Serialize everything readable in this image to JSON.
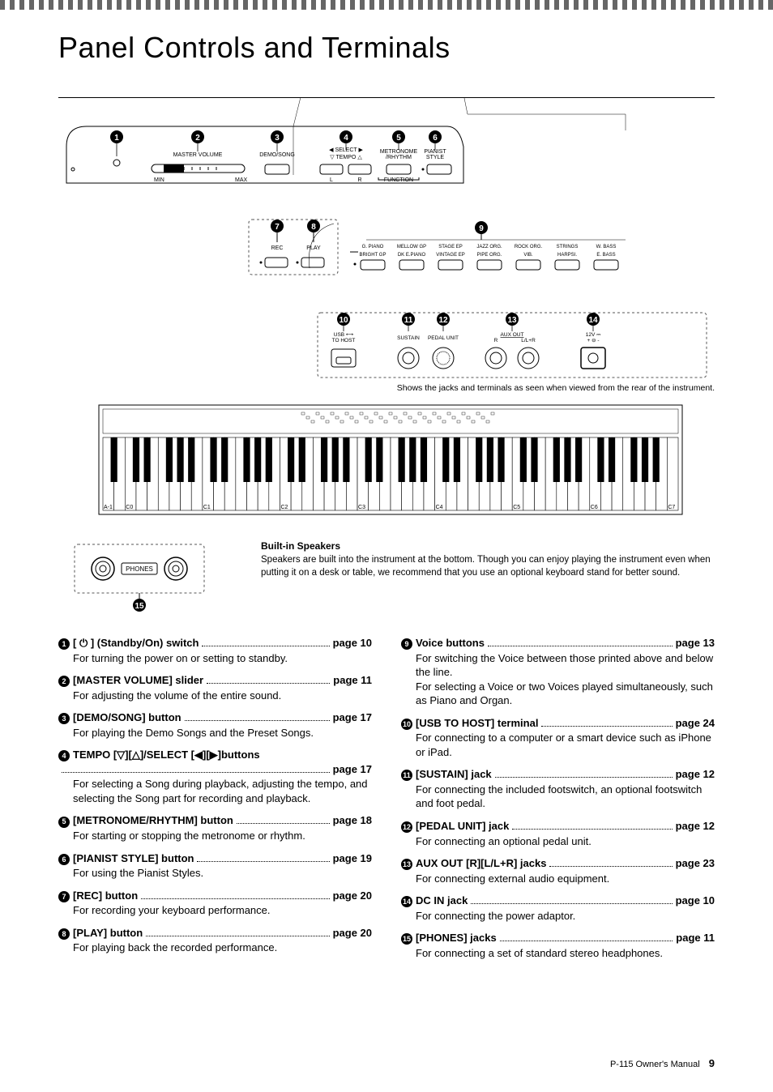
{
  "title": "Panel Controls and Terminals",
  "rear_caption": "Shows the jacks and terminals as seen when viewed from the rear of the instrument.",
  "speakers": {
    "heading": "Built-in Speakers",
    "body": "Speakers are built into the instrument at the bottom. Though you can enjoy playing the instrument even when putting it on a desk or table, we recommend that you use an optional keyboard stand for better sound."
  },
  "panel_labels": {
    "master_volume": "MASTER VOLUME",
    "min": "MIN",
    "max": "MAX",
    "demo_song": "DEMO/SONG",
    "select": "SELECT",
    "tempo": "TEMPO",
    "l": "L",
    "r": "R",
    "metronome": "METRONOME\n/RHYTHM",
    "pianist": "PIANIST\nSTYLE",
    "function": "FUNCTION",
    "rec": "REC",
    "play": "PLAY",
    "voices_top": [
      "G. PIANO",
      "MELLOW GP",
      "STAGE EP",
      "JAZZ ORG.",
      "ROCK ORG.",
      "STRINGS",
      "W. BASS"
    ],
    "voices_bot": [
      "BRIGHT GP",
      "DK E.PIANO",
      "VINTAGE EP",
      "PIPE ORG.",
      "VIB.",
      "HARPSI.",
      "E. BASS"
    ],
    "usb_to_host": "USB\nTO HOST",
    "sustain": "SUSTAIN",
    "pedal_unit": "PEDAL UNIT",
    "aux_out": "AUX OUT",
    "aux_r": "R",
    "aux_l": "L/L+R",
    "dc": "12V",
    "phones": "PHONES"
  },
  "keyboard_octaves": [
    "A-1",
    "C0",
    "C1",
    "C2",
    "C3",
    "C4",
    "C5",
    "C6",
    "C7"
  ],
  "colors": {
    "text": "#000000",
    "bg": "#ffffff",
    "light": "#888888",
    "dash": "#555555"
  },
  "left_items": [
    {
      "n": "1",
      "label": "[ ⏻ ] (Standby/On) switch",
      "page": "page 10",
      "desc": "For turning the power on or setting to standby."
    },
    {
      "n": "2",
      "label": "[MASTER VOLUME] slider",
      "page": "page 11",
      "desc": "For adjusting the volume of the entire sound."
    },
    {
      "n": "3",
      "label": "[DEMO/SONG] button",
      "page": "page 17",
      "desc": "For playing the Demo Songs and the Preset Songs."
    },
    {
      "n": "4",
      "label": "TEMPO [▽][△]/SELECT [◀][▶]buttons",
      "page": "page 17",
      "desc": "For selecting a Song during playback, adjusting the tempo, and selecting the Song part for recording and playback.",
      "wrap": true
    },
    {
      "n": "5",
      "label": "[METRONOME/RHYTHM] button",
      "page": "page 18",
      "desc": "For starting or stopping the metronome or rhythm."
    },
    {
      "n": "6",
      "label": "[PIANIST STYLE] button",
      "page": "page 19",
      "desc": "For using the Pianist Styles."
    },
    {
      "n": "7",
      "label": "[REC] button",
      "page": "page 20",
      "desc": "For recording your keyboard performance."
    },
    {
      "n": "8",
      "label": "[PLAY] button",
      "page": "page 20",
      "desc": "For playing back the recorded performance."
    }
  ],
  "right_items": [
    {
      "n": "9",
      "label": "Voice buttons",
      "page": "page 13",
      "desc": "For switching the Voice between those printed above and below the line.\nFor selecting a Voice or two Voices played simultaneously, such as Piano and Organ."
    },
    {
      "n": "10",
      "label": "[USB TO HOST] terminal",
      "page": "page 24",
      "desc": "For connecting to a computer or a smart device such as iPhone or iPad."
    },
    {
      "n": "11",
      "label": "[SUSTAIN] jack",
      "page": "page 12",
      "desc": "For connecting the included footswitch, an optional footswitch and foot pedal."
    },
    {
      "n": "12",
      "label": "[PEDAL UNIT] jack",
      "page": "page 12",
      "desc": "For connecting an optional pedal unit."
    },
    {
      "n": "13",
      "label": "AUX OUT [R][L/L+R] jacks",
      "page": "page 23",
      "desc": "For connecting external audio equipment."
    },
    {
      "n": "14",
      "label": "DC IN jack",
      "page": "page 10",
      "desc": "For connecting the power adaptor."
    },
    {
      "n": "15",
      "label": "[PHONES] jacks",
      "page": "page 11",
      "desc": "For connecting a set of standard stereo headphones."
    }
  ],
  "footer": {
    "manual": "P-115  Owner's Manual",
    "page": "9"
  }
}
